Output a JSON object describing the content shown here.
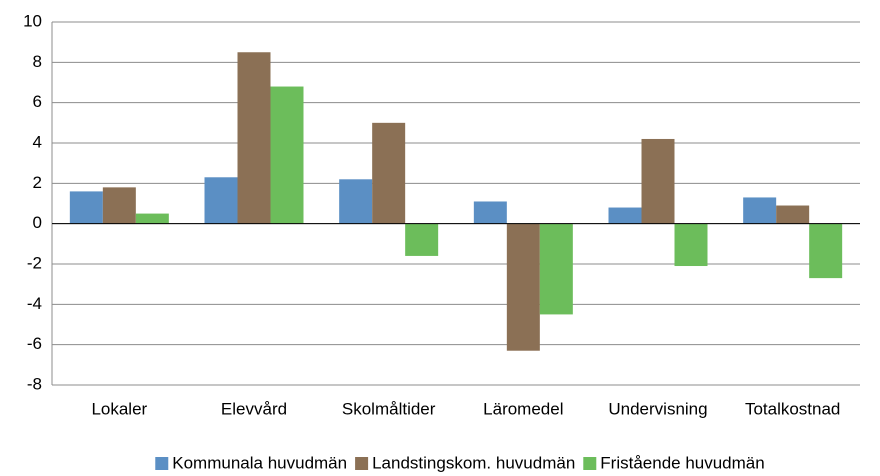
{
  "chart_data": {
    "type": "bar",
    "categories": [
      "Lokaler",
      "Elevvård",
      "Skolmåltider",
      "Läromedel",
      "Undervisning",
      "Totalkostnad"
    ],
    "series": [
      {
        "name": "Kommunala huvudmän",
        "color": "#5b8fc4",
        "values": [
          1.6,
          2.3,
          2.2,
          1.1,
          0.8,
          1.3
        ]
      },
      {
        "name": "Landstingskom. huvudmän",
        "color": "#8b7055",
        "values": [
          1.8,
          8.5,
          5.0,
          -6.3,
          4.2,
          0.9
        ]
      },
      {
        "name": "Fristående huvudmän",
        "color": "#6cbd5b",
        "values": [
          0.5,
          6.8,
          -1.6,
          -4.5,
          -2.1,
          -2.7
        ]
      }
    ],
    "ylim": [
      -8,
      10
    ],
    "yticks": [
      -8,
      -6,
      -4,
      -2,
      0,
      2,
      4,
      6,
      8,
      10
    ],
    "grid": true,
    "legend": "bottom"
  }
}
